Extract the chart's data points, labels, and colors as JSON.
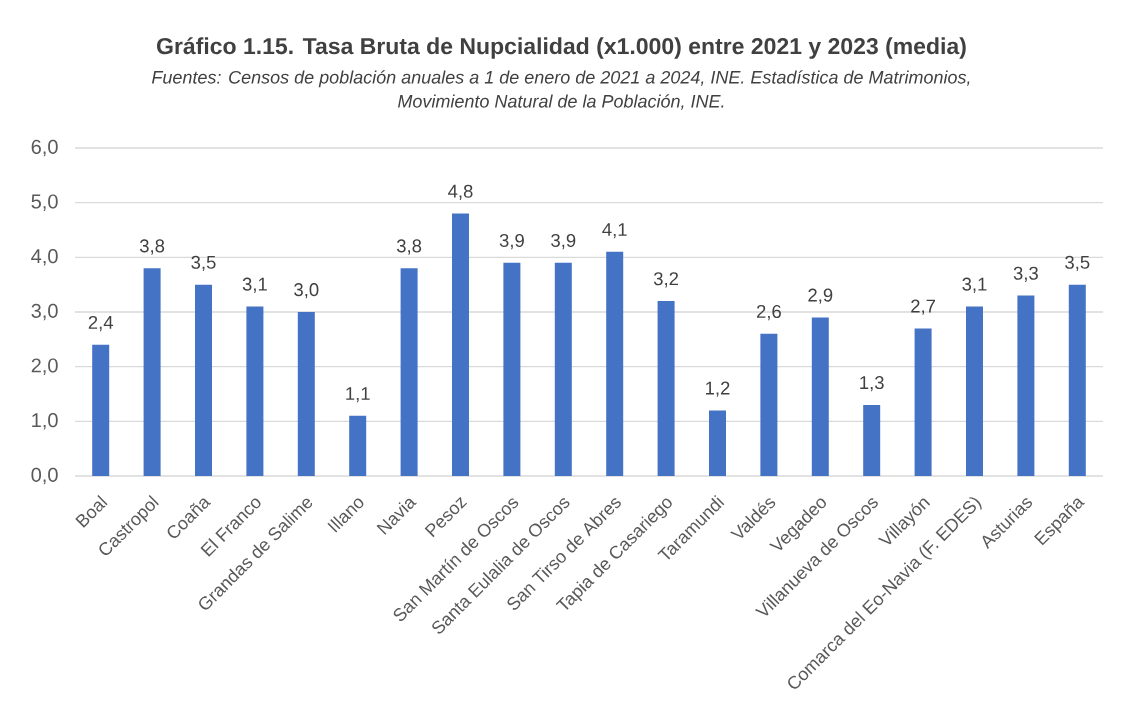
{
  "chart_data": {
    "type": "bar",
    "title": "Gráfico 1.15. Tasa Bruta de Nupcialidad (x1.000) entre 2021 y 2023 (media)",
    "annotations": [
      "Fuentes: Censos de población anuales a 1 de enero de 2021 a 2024, INE. Estadística de Matrimonios, Movimiento Natural de la Población, INE."
    ],
    "categories": [
      "Boal",
      "Castropol",
      "Coaña",
      "El Franco",
      "Grandas de Salime",
      "Illano",
      "Navia",
      "Pesoz",
      "San Martín de Oscos",
      "Santa Eulalia de Oscos",
      "San Tirso de Abres",
      "Tapia de Casariego",
      "Taramundi",
      "Valdés",
      "Vegadeo",
      "Villanueva de Oscos",
      "Villayón",
      "Comarca del Eo-Navia (F. EDES)",
      "Asturias",
      "España"
    ],
    "values": [
      2.4,
      3.8,
      3.5,
      3.1,
      3.0,
      1.1,
      3.8,
      4.8,
      3.9,
      3.9,
      4.1,
      3.2,
      1.2,
      2.6,
      2.9,
      1.3,
      2.7,
      3.1,
      3.3,
      3.5
    ],
    "value_labels": [
      "2,4",
      "3,8",
      "3,5",
      "3,1",
      "3,0",
      "1,1",
      "3,8",
      "4,8",
      "3,9",
      "3,9",
      "4,1",
      "3,2",
      "1,2",
      "2,6",
      "2,9",
      "1,3",
      "2,7",
      "3,1",
      "3,3",
      "3,5"
    ],
    "color": "#4472c4",
    "ylim": [
      0,
      6
    ],
    "yticks": [
      {
        "value": 0,
        "label": "0,0"
      },
      {
        "value": 1,
        "label": "1,0"
      },
      {
        "value": 2,
        "label": "2,0"
      },
      {
        "value": 3,
        "label": "3,0"
      },
      {
        "value": 4,
        "label": "4,0"
      },
      {
        "value": 5,
        "label": "5,0"
      },
      {
        "value": 6,
        "label": "6,0"
      }
    ],
    "grid": "y"
  }
}
